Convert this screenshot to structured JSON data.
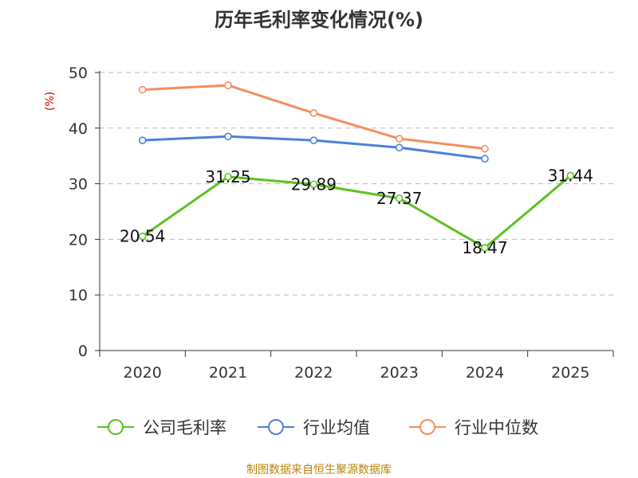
{
  "chart_data": {
    "type": "line",
    "title": "历年毛利率变化情况(%)",
    "xlabel": "",
    "ylabel": "(%)",
    "categories": [
      "2020",
      "2021",
      "2022",
      "2023",
      "2024",
      "2025"
    ],
    "ylim": [
      0,
      50
    ],
    "yticks": [
      0,
      10,
      20,
      30,
      40,
      50
    ],
    "grid": true,
    "legend_position": "bottom",
    "series": [
      {
        "name": "公司毛利率",
        "color": "#5bc21f",
        "values": [
          20.54,
          31.25,
          29.89,
          27.37,
          18.47,
          31.44
        ],
        "labels": [
          "20.54",
          "31.25",
          "29.89",
          "27.37",
          "18.47",
          "31.44"
        ]
      },
      {
        "name": "行业均值",
        "color": "#4e7fdc",
        "values": [
          37.8,
          38.5,
          37.8,
          36.5,
          34.5,
          null
        ]
      },
      {
        "name": "行业中位数",
        "color": "#f78c5c",
        "values": [
          46.9,
          47.7,
          42.7,
          38.1,
          36.3,
          null
        ]
      }
    ],
    "source": "制图数据来自恒生聚源数据库"
  }
}
